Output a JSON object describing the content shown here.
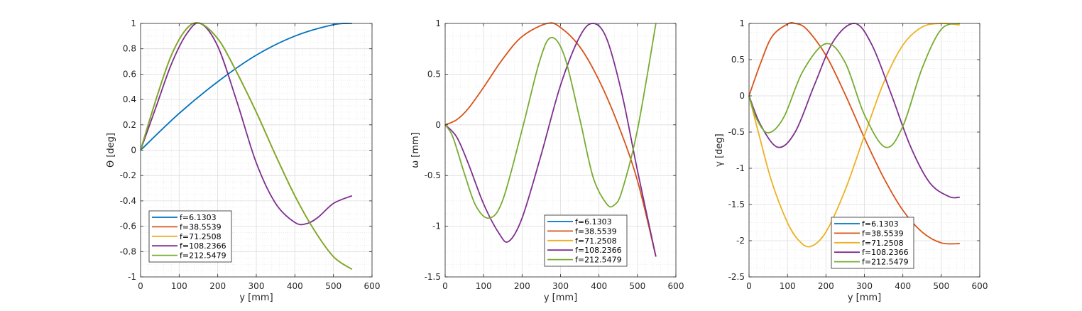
{
  "chart_data": [
    {
      "type": "line",
      "xlabel": "y [mm]",
      "ylabel": "Θ [deg]",
      "xlim": [
        0,
        600
      ],
      "ylim": [
        -1,
        1
      ],
      "xticks": [
        0,
        100,
        200,
        300,
        400,
        500,
        600
      ],
      "yticks": [
        -1,
        -0.8,
        -0.6,
        -0.4,
        -0.2,
        0,
        0.2,
        0.4,
        0.6,
        0.8,
        1
      ],
      "grid": true,
      "legend_position": "lower-left",
      "series": [
        {
          "name": "f=6.1303",
          "color": "#0072BD",
          "x": [
            0,
            100,
            200,
            300,
            400,
            500,
            548
          ],
          "y": [
            0,
            0.29,
            0.54,
            0.75,
            0.9,
            0.99,
            1.0
          ]
        },
        {
          "name": "f=38.5539",
          "color": "#D95319",
          "x": [
            0,
            40,
            80,
            120,
            155,
            200,
            240,
            300,
            350,
            400,
            450,
            500,
            548
          ],
          "y": [
            0,
            0.4,
            0.75,
            0.96,
            1.0,
            0.88,
            0.67,
            0.3,
            -0.04,
            -0.36,
            -0.63,
            -0.84,
            -0.94
          ]
        },
        {
          "name": "f=71.2508",
          "color": "#EDB120",
          "x": [
            0,
            40,
            80,
            120,
            155,
            200,
            240,
            300,
            350,
            400,
            450,
            500,
            548
          ],
          "y": [
            0,
            0.4,
            0.75,
            0.96,
            1.0,
            0.88,
            0.67,
            0.3,
            -0.04,
            -0.36,
            -0.63,
            -0.84,
            -0.94
          ]
        },
        {
          "name": "f=108.2366",
          "color": "#7E2F8E",
          "x": [
            0,
            40,
            80,
            120,
            155,
            200,
            250,
            300,
            350,
            400,
            430,
            460,
            500,
            548
          ],
          "y": [
            0,
            0.34,
            0.68,
            0.92,
            1.0,
            0.82,
            0.38,
            -0.1,
            -0.42,
            -0.57,
            -0.58,
            -0.53,
            -0.42,
            -0.36
          ]
        },
        {
          "name": "f=212.5479",
          "color": "#77AC30",
          "x": [
            0,
            40,
            80,
            120,
            155,
            200,
            240,
            300,
            350,
            400,
            450,
            500,
            548
          ],
          "y": [
            0,
            0.4,
            0.75,
            0.96,
            1.0,
            0.88,
            0.67,
            0.3,
            -0.04,
            -0.36,
            -0.63,
            -0.84,
            -0.94
          ]
        }
      ]
    },
    {
      "type": "line",
      "xlabel": "y [mm]",
      "ylabel": "ω [mm]",
      "xlim": [
        0,
        600
      ],
      "ylim": [
        -1.5,
        1
      ],
      "xticks": [
        0,
        100,
        200,
        300,
        400,
        500,
        600
      ],
      "yticks": [
        -1.5,
        -1,
        -0.5,
        0,
        0.5,
        1
      ],
      "grid": true,
      "legend_position": "lower-right",
      "series": [
        {
          "name": "f=6.1303",
          "color": "#0072BD",
          "x": [],
          "y": []
        },
        {
          "name": "f=38.5539",
          "color": "#D95319",
          "x": [
            0,
            30,
            60,
            100,
            150,
            200,
            265,
            300,
            350,
            400,
            450,
            500,
            548
          ],
          "y": [
            0,
            0.05,
            0.16,
            0.37,
            0.65,
            0.87,
            1.0,
            0.96,
            0.77,
            0.44,
            0.0,
            -0.55,
            -1.3
          ]
        },
        {
          "name": "f=71.2508",
          "color": "#EDB120",
          "x": [],
          "y": []
        },
        {
          "name": "f=108.2366",
          "color": "#7E2F8E",
          "x": [
            0,
            30,
            60,
            100,
            140,
            165,
            200,
            250,
            300,
            350,
            385,
            420,
            460,
            500,
            548
          ],
          "y": [
            0,
            -0.12,
            -0.38,
            -0.78,
            -1.07,
            -1.15,
            -0.92,
            -0.29,
            0.39,
            0.87,
            1.0,
            0.85,
            0.3,
            -0.45,
            -1.3
          ]
        },
        {
          "name": "f=212.5479",
          "color": "#77AC30",
          "x": [
            0,
            20,
            50,
            80,
            115,
            150,
            200,
            245,
            275,
            310,
            350,
            385,
            420,
            440,
            460,
            500,
            548
          ],
          "y": [
            0,
            -0.12,
            -0.48,
            -0.8,
            -0.92,
            -0.74,
            -0.05,
            0.62,
            0.86,
            0.68,
            0.06,
            -0.52,
            -0.78,
            -0.79,
            -0.65,
            -0.05,
            1.0
          ]
        }
      ]
    },
    {
      "type": "line",
      "xlabel": "y [mm]",
      "ylabel": "γ [deg]",
      "xlim": [
        0,
        600
      ],
      "ylim": [
        -2.5,
        1
      ],
      "xticks": [
        0,
        100,
        200,
        300,
        400,
        500,
        600
      ],
      "yticks": [
        -2.5,
        -2,
        -1.5,
        -1,
        -0.5,
        0,
        0.5,
        1
      ],
      "grid": true,
      "legend_position": "lower-center",
      "series": [
        {
          "name": "f=6.1303",
          "color": "#0072BD",
          "x": [],
          "y": []
        },
        {
          "name": "f=38.5539",
          "color": "#D95319",
          "x": [
            0,
            30,
            60,
            100,
            120,
            150,
            200,
            250,
            300,
            350,
            400,
            450,
            500,
            548
          ],
          "y": [
            0,
            0.45,
            0.82,
            0.99,
            1.0,
            0.92,
            0.56,
            0.02,
            -0.58,
            -1.13,
            -1.58,
            -1.88,
            -2.03,
            -2.04
          ]
        },
        {
          "name": "f=71.2508",
          "color": "#EDB120",
          "x": [
            0,
            30,
            60,
            100,
            130,
            160,
            200,
            250,
            300,
            350,
            400,
            450,
            500,
            548
          ],
          "y": [
            0,
            -0.62,
            -1.2,
            -1.75,
            -2.0,
            -2.08,
            -1.88,
            -1.3,
            -0.55,
            0.18,
            0.7,
            0.95,
            1.0,
            0.98
          ]
        },
        {
          "name": "f=108.2366",
          "color": "#7E2F8E",
          "x": [
            0,
            30,
            75,
            120,
            170,
            220,
            275,
            320,
            370,
            420,
            470,
            520,
            548
          ],
          "y": [
            0,
            -0.4,
            -0.71,
            -0.5,
            0.15,
            0.76,
            1.0,
            0.7,
            0.02,
            -0.7,
            -1.2,
            -1.39,
            -1.4
          ]
        },
        {
          "name": "f=212.5479",
          "color": "#77AC30",
          "x": [
            0,
            20,
            50,
            90,
            140,
            200,
            250,
            300,
            355,
            400,
            450,
            500,
            548
          ],
          "y": [
            0,
            -0.32,
            -0.51,
            -0.3,
            0.34,
            0.72,
            0.46,
            -0.26,
            -0.71,
            -0.42,
            0.38,
            0.92,
            1.0
          ]
        }
      ]
    }
  ]
}
